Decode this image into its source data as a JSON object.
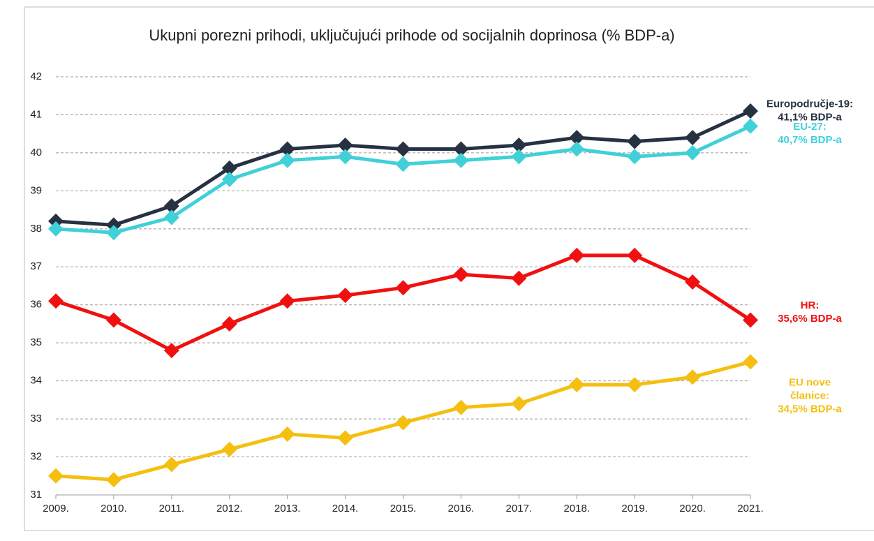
{
  "chart_data": {
    "type": "line",
    "title": "Ukupni porezni prihodi, uključujući prihode od socijalnih doprinosa (% BDP-a)",
    "categories": [
      "2009.",
      "2010.",
      "2011.",
      "2012.",
      "2013.",
      "2014.",
      "2015.",
      "2016.",
      "2017.",
      "2018.",
      "2019.",
      "2020.",
      "2021."
    ],
    "series": [
      {
        "name": "Europodručje-19",
        "color": "#263142",
        "values": [
          38.2,
          38.1,
          38.6,
          39.6,
          40.1,
          40.2,
          40.1,
          40.1,
          40.2,
          40.4,
          40.3,
          40.4,
          41.1
        ]
      },
      {
        "name": "EU-27",
        "color": "#40d0d8",
        "values": [
          38.0,
          37.9,
          38.3,
          39.3,
          39.8,
          39.9,
          39.7,
          39.8,
          39.9,
          40.1,
          39.9,
          40.0,
          40.7
        ]
      },
      {
        "name": "HR",
        "color": "#f01010",
        "values": [
          36.1,
          35.6,
          34.8,
          35.5,
          36.1,
          36.25,
          36.45,
          36.8,
          36.7,
          37.3,
          37.3,
          36.6,
          35.6
        ]
      },
      {
        "name": "EU nove članice",
        "color": "#f5bf10",
        "values": [
          31.5,
          31.4,
          31.8,
          32.2,
          32.6,
          32.5,
          32.9,
          33.3,
          33.4,
          33.9,
          33.9,
          34.1,
          34.5
        ]
      }
    ],
    "annotations": [
      {
        "lines": [
          "Europodručje-19:",
          "41,1% BDP-a"
        ],
        "color": "#263142",
        "y": 41.1
      },
      {
        "lines": [
          "EU-27:",
          "40,7% BDP-a"
        ],
        "color": "#40d0d8",
        "y": 40.5
      },
      {
        "lines": [
          "HR:",
          "35,6% BDP-a"
        ],
        "color": "#f01010",
        "y": 35.8
      },
      {
        "lines": [
          "EU nove",
          "članice:",
          "34,5% BDP-a"
        ],
        "color": "#f5bf10",
        "y": 33.6
      }
    ],
    "ylim": [
      31,
      42
    ],
    "yticks": [
      31,
      32,
      33,
      34,
      35,
      36,
      37,
      38,
      39,
      40,
      41,
      42
    ],
    "grid": true
  }
}
